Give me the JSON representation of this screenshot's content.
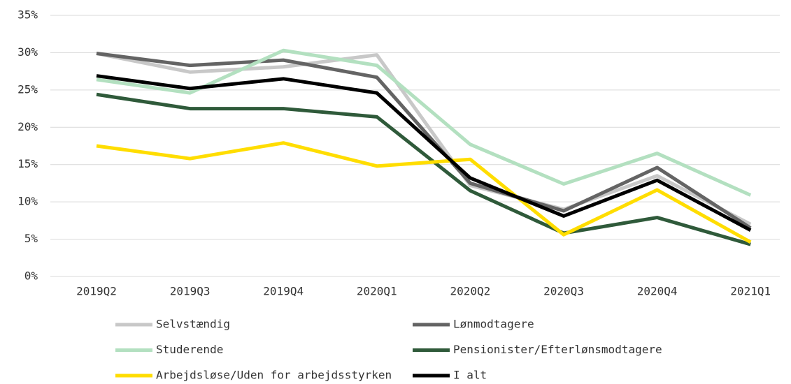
{
  "chart_data": {
    "type": "line",
    "categories": [
      "2019Q2",
      "2019Q3",
      "2019Q4",
      "2020Q1",
      "2020Q2",
      "2020Q3",
      "2020Q4",
      "2021Q1"
    ],
    "series": [
      {
        "name": "Selvstændig",
        "color": "#c8c8c8",
        "values": [
          29.9,
          27.4,
          28.1,
          29.7,
          12.2,
          9.0,
          13.5,
          7.0
        ]
      },
      {
        "name": "Lønmodtagere",
        "color": "#646464",
        "values": [
          29.9,
          28.3,
          29.0,
          26.7,
          12.5,
          8.8,
          14.6,
          6.5
        ]
      },
      {
        "name": "Studerende",
        "color": "#b3e0c0",
        "values": [
          26.4,
          24.6,
          30.3,
          28.3,
          17.7,
          12.4,
          16.5,
          10.9
        ]
      },
      {
        "name": "Pensionister/Efterlønsmodtagere",
        "color": "#2f5a3a",
        "values": [
          24.4,
          22.5,
          22.5,
          21.4,
          11.5,
          5.8,
          7.9,
          4.3
        ]
      },
      {
        "name": "Arbejdsløse/Uden for arbejdsstyrken",
        "color": "#ffdd00",
        "values": [
          17.5,
          15.8,
          17.9,
          14.8,
          15.7,
          5.6,
          11.6,
          4.6
        ]
      },
      {
        "name": "I alt",
        "color": "#000000",
        "values": [
          26.9,
          25.2,
          26.5,
          24.6,
          13.2,
          8.1,
          12.9,
          6.2
        ]
      }
    ],
    "ylim": [
      0,
      35
    ],
    "yticks": [
      {
        "value": 0,
        "label": "0%"
      },
      {
        "value": 5,
        "label": "5%"
      },
      {
        "value": 10,
        "label": "10%"
      },
      {
        "value": 15,
        "label": "15%"
      },
      {
        "value": 20,
        "label": "20%"
      },
      {
        "value": 25,
        "label": "25%"
      },
      {
        "value": 30,
        "label": "30%"
      },
      {
        "value": 35,
        "label": "35%"
      }
    ],
    "grid": true
  }
}
